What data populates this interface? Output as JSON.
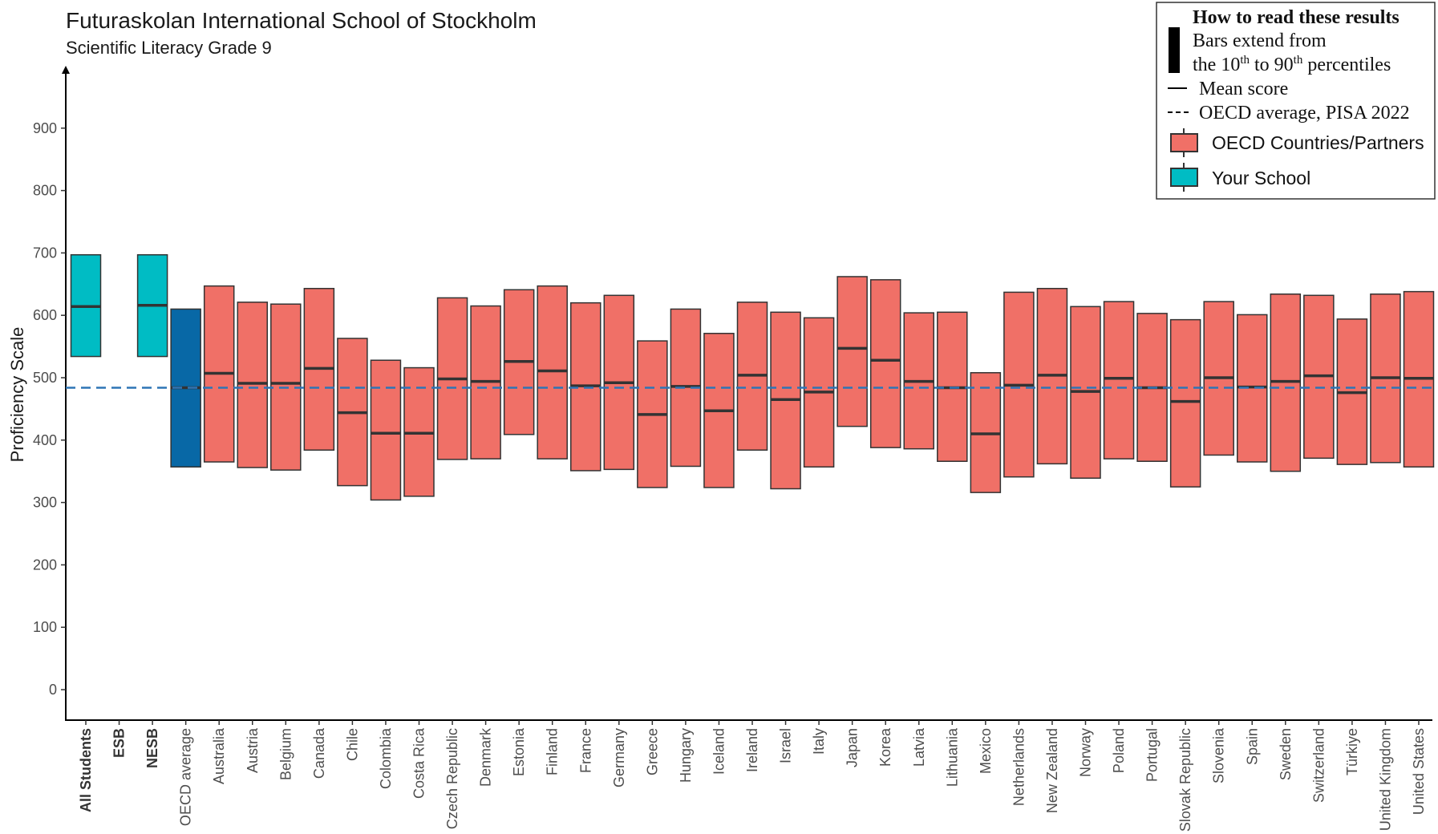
{
  "chart_data": {
    "type": "bar",
    "title": "Futuraskolan International School of Stockholm",
    "subtitle": "Scientific Literacy Grade 9",
    "ylabel": "Proficiency Scale",
    "xlabel": "",
    "ylim": [
      -45,
      1000
    ],
    "yticks": [
      0,
      100,
      200,
      300,
      400,
      500,
      600,
      700,
      800,
      900
    ],
    "reference_line": {
      "value": 484,
      "color": "#2e75b6"
    },
    "grid": false,
    "legend_position": "top-right",
    "legend": {
      "heading": "How to read these results",
      "bars_line1": "Bars extend from",
      "bars_line2_prefix": "the 10",
      "bars_line2_sup1": "th",
      "bars_line2_mid": " to 90",
      "bars_line2_sup2": "th",
      "bars_line2_suffix": " percentiles",
      "mean_label": "Mean score",
      "oecd_label": "OECD average, PISA 2022",
      "series": [
        {
          "name": "OECD Countries/Partners",
          "color": "#f07067"
        },
        {
          "name": "Your School",
          "color": "#00bcc4"
        }
      ]
    },
    "colors": {
      "school": "#00bcc4",
      "oecd_avg": "#0868a6",
      "country": "#f07067",
      "border": "#333333"
    },
    "categories": [
      {
        "label": "All Students",
        "group": "school",
        "bold": true,
        "p10": 534,
        "p90": 697,
        "mean": 614
      },
      {
        "label": "ESB",
        "group": "school",
        "bold": true,
        "p10": null,
        "p90": null,
        "mean": null
      },
      {
        "label": "NESB",
        "group": "school",
        "bold": true,
        "p10": 534,
        "p90": 697,
        "mean": 616
      },
      {
        "label": "OECD average",
        "group": "oecd_avg",
        "bold": false,
        "p10": 357,
        "p90": 610,
        "mean": 484
      },
      {
        "label": "Australia",
        "group": "country",
        "bold": false,
        "p10": 365,
        "p90": 647,
        "mean": 507
      },
      {
        "label": "Austria",
        "group": "country",
        "bold": false,
        "p10": 356,
        "p90": 621,
        "mean": 491
      },
      {
        "label": "Belgium",
        "group": "country",
        "bold": false,
        "p10": 352,
        "p90": 618,
        "mean": 491
      },
      {
        "label": "Canada",
        "group": "country",
        "bold": false,
        "p10": 384,
        "p90": 643,
        "mean": 515
      },
      {
        "label": "Chile",
        "group": "country",
        "bold": false,
        "p10": 327,
        "p90": 563,
        "mean": 444
      },
      {
        "label": "Colombia",
        "group": "country",
        "bold": false,
        "p10": 304,
        "p90": 528,
        "mean": 411
      },
      {
        "label": "Costa Rica",
        "group": "country",
        "bold": false,
        "p10": 310,
        "p90": 516,
        "mean": 411
      },
      {
        "label": "Czech Republic",
        "group": "country",
        "bold": false,
        "p10": 369,
        "p90": 628,
        "mean": 498
      },
      {
        "label": "Denmark",
        "group": "country",
        "bold": false,
        "p10": 370,
        "p90": 615,
        "mean": 494
      },
      {
        "label": "Estonia",
        "group": "country",
        "bold": false,
        "p10": 409,
        "p90": 641,
        "mean": 526
      },
      {
        "label": "Finland",
        "group": "country",
        "bold": false,
        "p10": 370,
        "p90": 647,
        "mean": 511
      },
      {
        "label": "France",
        "group": "country",
        "bold": false,
        "p10": 351,
        "p90": 620,
        "mean": 487
      },
      {
        "label": "Germany",
        "group": "country",
        "bold": false,
        "p10": 353,
        "p90": 632,
        "mean": 492
      },
      {
        "label": "Greece",
        "group": "country",
        "bold": false,
        "p10": 324,
        "p90": 559,
        "mean": 441
      },
      {
        "label": "Hungary",
        "group": "country",
        "bold": false,
        "p10": 358,
        "p90": 610,
        "mean": 486
      },
      {
        "label": "Iceland",
        "group": "country",
        "bold": false,
        "p10": 324,
        "p90": 571,
        "mean": 447
      },
      {
        "label": "Ireland",
        "group": "country",
        "bold": false,
        "p10": 384,
        "p90": 621,
        "mean": 504
      },
      {
        "label": "Israel",
        "group": "country",
        "bold": false,
        "p10": 322,
        "p90": 605,
        "mean": 465
      },
      {
        "label": "Italy",
        "group": "country",
        "bold": false,
        "p10": 357,
        "p90": 596,
        "mean": 477
      },
      {
        "label": "Japan",
        "group": "country",
        "bold": false,
        "p10": 422,
        "p90": 662,
        "mean": 547
      },
      {
        "label": "Korea",
        "group": "country",
        "bold": false,
        "p10": 388,
        "p90": 657,
        "mean": 528
      },
      {
        "label": "Latvia",
        "group": "country",
        "bold": false,
        "p10": 386,
        "p90": 604,
        "mean": 494
      },
      {
        "label": "Lithuania",
        "group": "country",
        "bold": false,
        "p10": 366,
        "p90": 605,
        "mean": 484
      },
      {
        "label": "Mexico",
        "group": "country",
        "bold": false,
        "p10": 316,
        "p90": 508,
        "mean": 410
      },
      {
        "label": "Netherlands",
        "group": "country",
        "bold": false,
        "p10": 341,
        "p90": 637,
        "mean": 488
      },
      {
        "label": "New Zealand",
        "group": "country",
        "bold": false,
        "p10": 362,
        "p90": 643,
        "mean": 504
      },
      {
        "label": "Norway",
        "group": "country",
        "bold": false,
        "p10": 339,
        "p90": 614,
        "mean": 478
      },
      {
        "label": "Poland",
        "group": "country",
        "bold": false,
        "p10": 370,
        "p90": 622,
        "mean": 499
      },
      {
        "label": "Portugal",
        "group": "country",
        "bold": false,
        "p10": 366,
        "p90": 603,
        "mean": 484
      },
      {
        "label": "Slovak Republic",
        "group": "country",
        "bold": false,
        "p10": 325,
        "p90": 593,
        "mean": 462
      },
      {
        "label": "Slovenia",
        "group": "country",
        "bold": false,
        "p10": 376,
        "p90": 622,
        "mean": 500
      },
      {
        "label": "Spain",
        "group": "country",
        "bold": false,
        "p10": 365,
        "p90": 601,
        "mean": 485
      },
      {
        "label": "Sweden",
        "group": "country",
        "bold": false,
        "p10": 350,
        "p90": 634,
        "mean": 494
      },
      {
        "label": "Switzerland",
        "group": "country",
        "bold": false,
        "p10": 371,
        "p90": 632,
        "mean": 503
      },
      {
        "label": "Türkiye",
        "group": "country",
        "bold": false,
        "p10": 361,
        "p90": 594,
        "mean": 476
      },
      {
        "label": "United Kingdom",
        "group": "country",
        "bold": false,
        "p10": 364,
        "p90": 634,
        "mean": 500
      },
      {
        "label": "United States",
        "group": "country",
        "bold": false,
        "p10": 357,
        "p90": 638,
        "mean": 499
      }
    ]
  }
}
